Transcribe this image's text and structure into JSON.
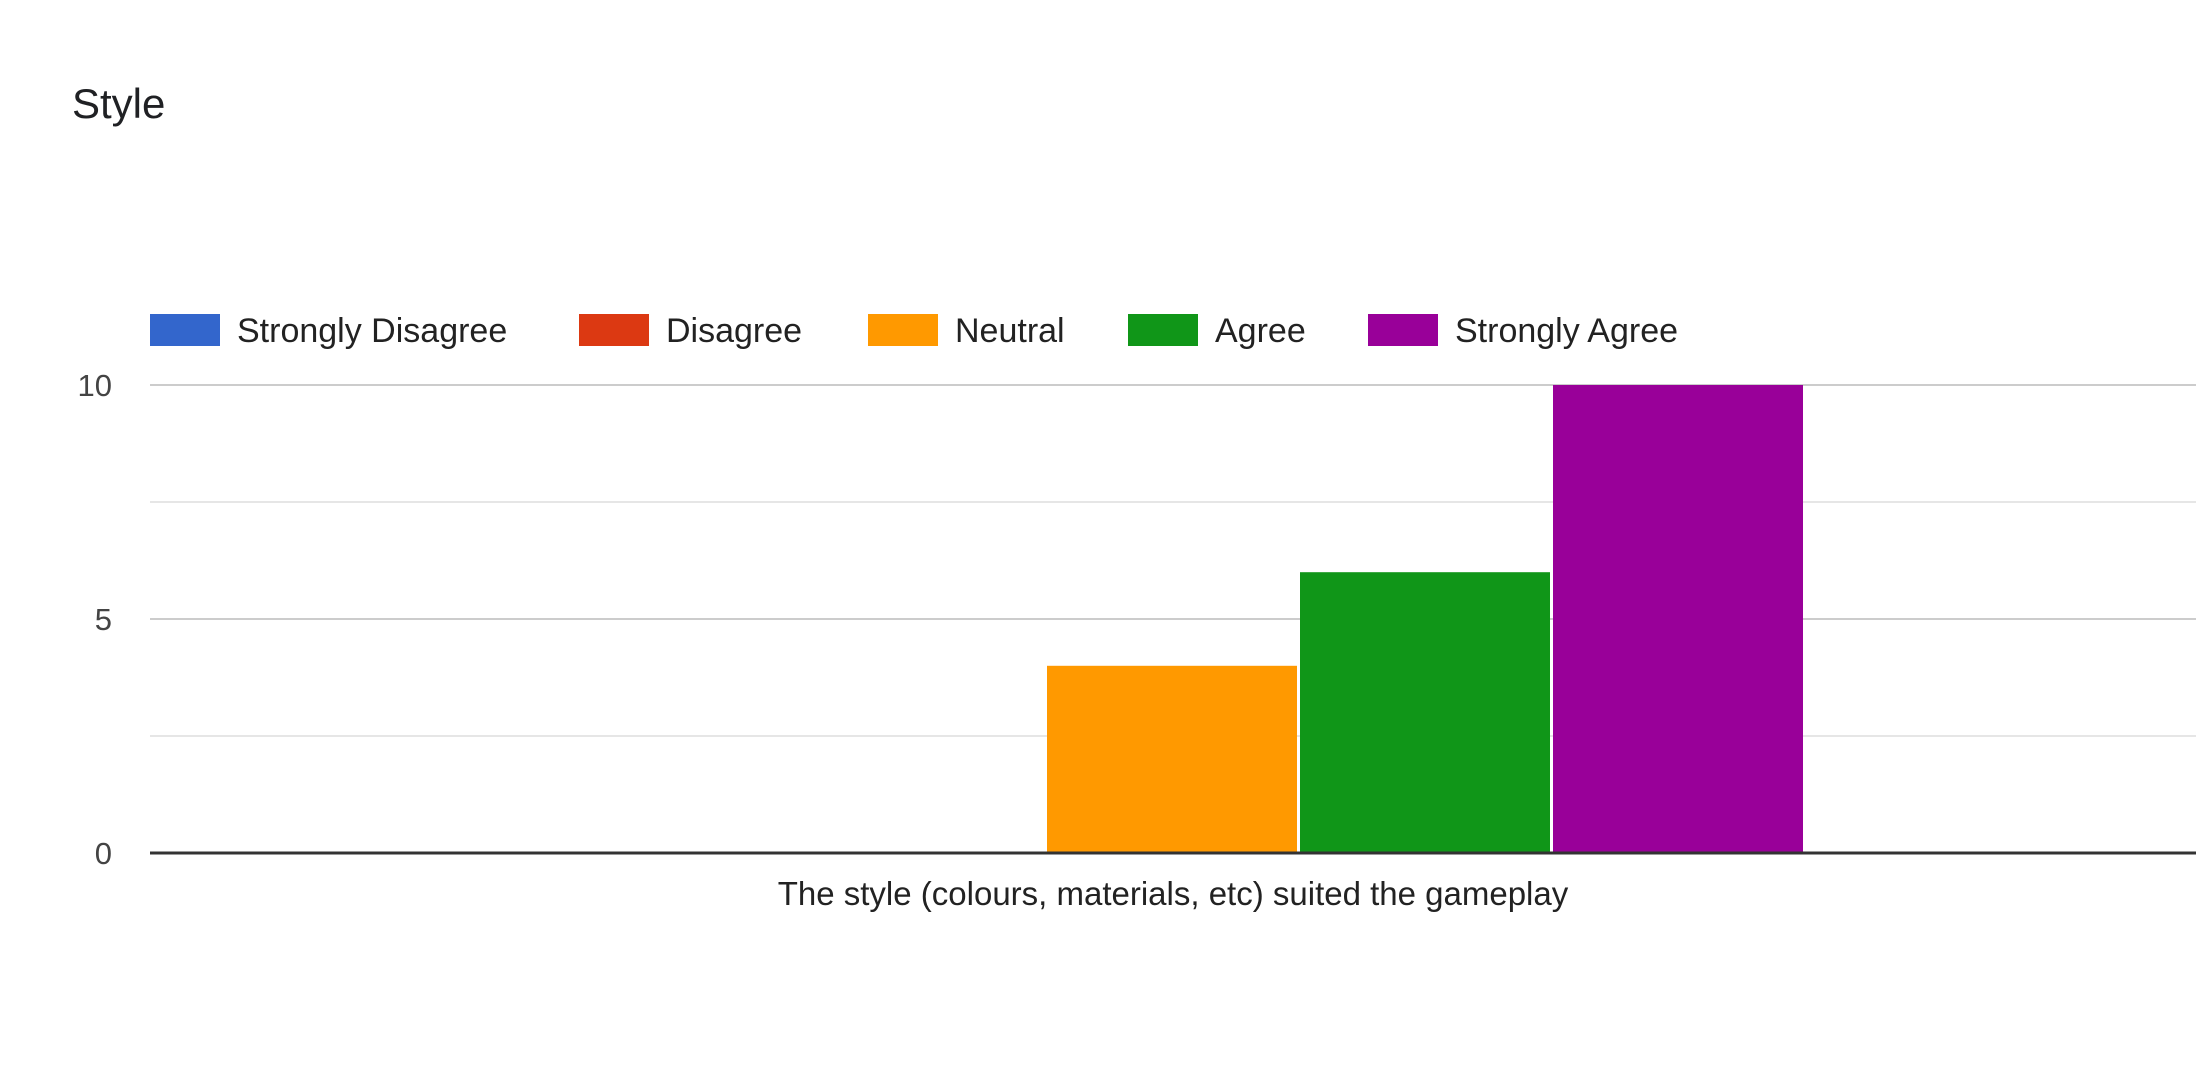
{
  "title": "Style",
  "chart_data": {
    "type": "bar",
    "title": "Style",
    "categories": [
      "The style (colours, materials, etc) suited the gameplay"
    ],
    "series": [
      {
        "name": "Strongly Disagree",
        "values": [
          0
        ],
        "color": "#3366cc"
      },
      {
        "name": "Disagree",
        "values": [
          0
        ],
        "color": "#dc3912"
      },
      {
        "name": "Neutral",
        "values": [
          4
        ],
        "color": "#ff9900"
      },
      {
        "name": "Agree",
        "values": [
          6
        ],
        "color": "#109618"
      },
      {
        "name": "Strongly Agree",
        "values": [
          10
        ],
        "color": "#990099"
      }
    ],
    "ylim": [
      0,
      10
    ],
    "yticks": [
      "0",
      "5",
      "10"
    ],
    "minor_gridlines": [
      2.5,
      7.5
    ],
    "legend_position": "top",
    "grid": true,
    "xlabel": "",
    "ylabel": ""
  }
}
